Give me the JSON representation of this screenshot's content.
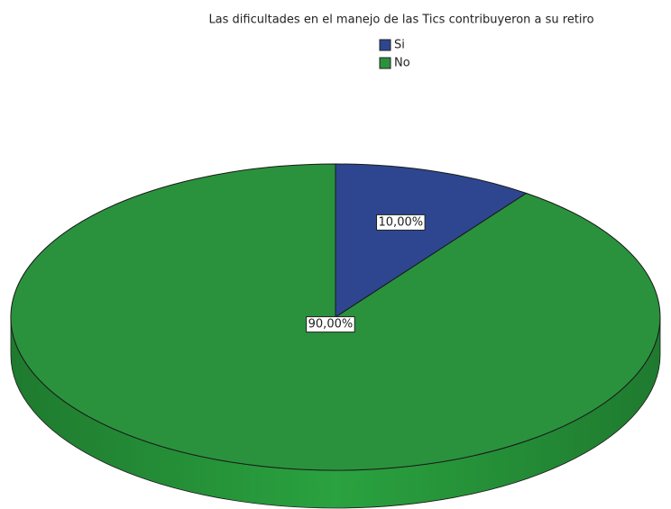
{
  "chart_data": {
    "type": "pie",
    "title": "Las dificultades en el manejo de las Tics contribuyeron a su retiro",
    "categories": [
      "Si",
      "No"
    ],
    "values": [
      10,
      90
    ],
    "value_labels": [
      "10,00%",
      "90,00%"
    ],
    "colors": [
      "#2e4690",
      "#2a923d"
    ],
    "legend": "top"
  }
}
